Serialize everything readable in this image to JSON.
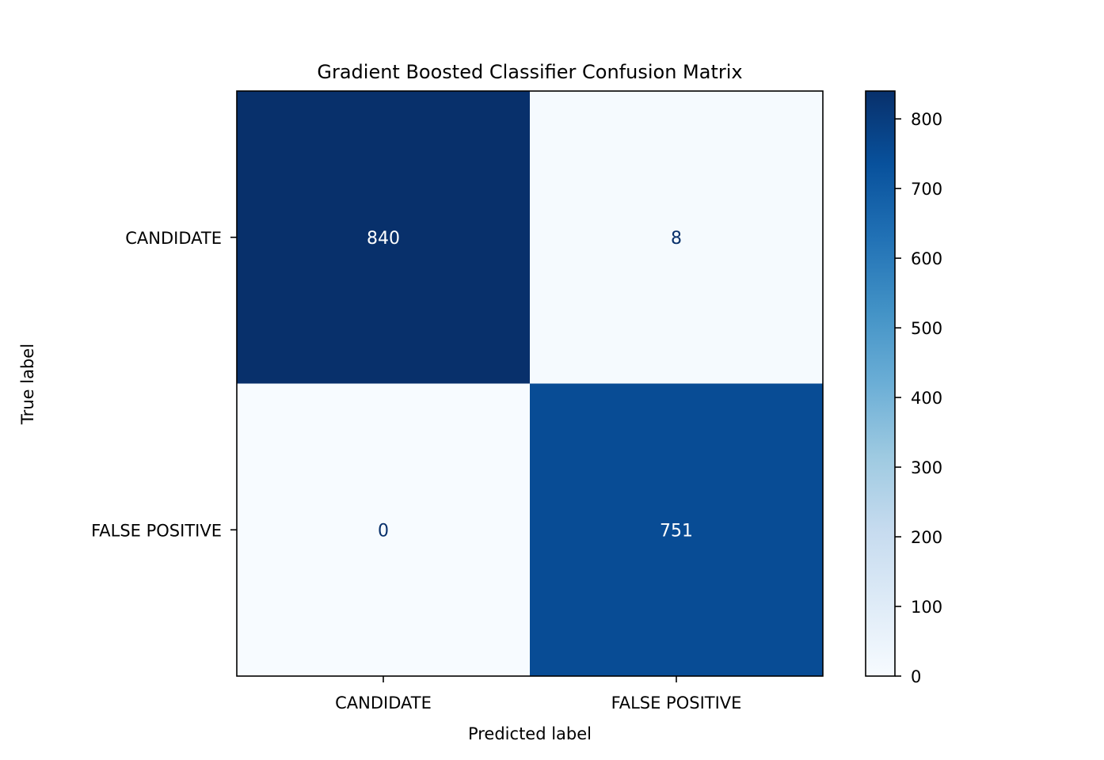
{
  "chart_data": {
    "type": "heatmap",
    "title": "Gradient Boosted Classifier Confusion Matrix",
    "xlabel": "Predicted label",
    "ylabel": "True label",
    "x_categories": [
      "CANDIDATE",
      "FALSE POSITIVE"
    ],
    "y_categories": [
      "CANDIDATE",
      "FALSE POSITIVE"
    ],
    "values": [
      [
        840,
        8
      ],
      [
        0,
        751
      ]
    ],
    "colormap": "Blues",
    "color_range": [
      0,
      840
    ],
    "colorbar_ticks": [
      0,
      100,
      200,
      300,
      400,
      500,
      600,
      700,
      800
    ],
    "colorbar_tick_labels": [
      "0",
      "100",
      "200",
      "300",
      "400",
      "500",
      "600",
      "700",
      "800"
    ],
    "text_color_dark_cells": "#ffffff",
    "text_color_light_cells": "#08306b",
    "grid": false,
    "colorbar_position": "right"
  }
}
